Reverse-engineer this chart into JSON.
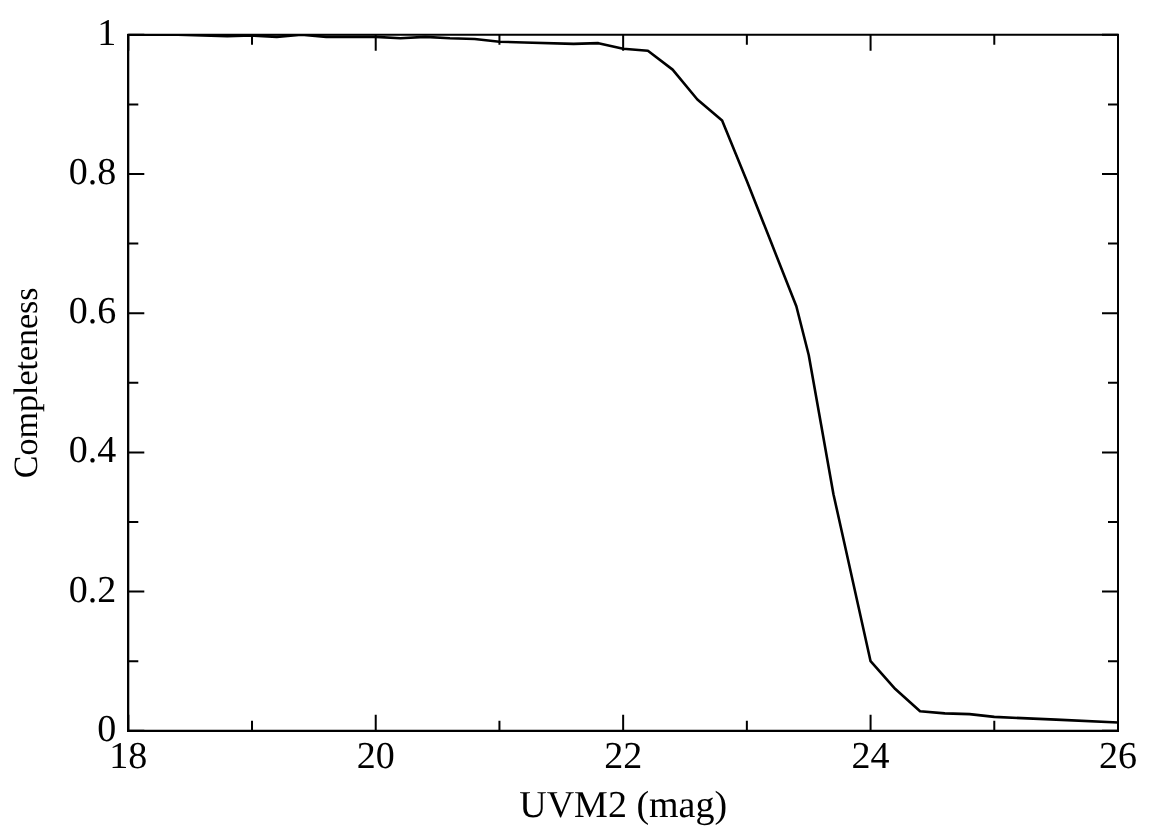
{
  "chart_data": {
    "type": "line",
    "xlabel": "UVM2 (mag)",
    "ylabel": "Completeness",
    "series": [
      {
        "color": "#000000",
        "x": [
          18,
          18.4,
          18.8,
          19.0,
          19.2,
          19.4,
          19.6,
          20.0,
          20.2,
          20.4,
          20.6,
          20.8,
          21.0,
          21.2,
          21.6,
          21.8,
          22.0,
          22.2,
          22.4,
          22.6,
          22.8,
          23.0,
          23.2,
          23.4,
          23.5,
          23.6,
          23.7,
          23.8,
          23.9,
          24.0,
          24.2,
          24.4,
          24.6,
          24.8,
          25.0,
          25.5,
          26.0
        ],
        "values": [
          1.0,
          1.0,
          0.998,
          0.999,
          0.997,
          1.0,
          0.997,
          0.997,
          0.995,
          0.997,
          0.995,
          0.994,
          0.99,
          0.989,
          0.987,
          0.988,
          0.98,
          0.977,
          0.95,
          0.907,
          0.877,
          0.79,
          0.7,
          0.61,
          0.54,
          0.44,
          0.34,
          0.26,
          0.18,
          0.1,
          0.06,
          0.028,
          0.025,
          0.024,
          0.02,
          0.016,
          0.012
        ]
      }
    ],
    "xlim": [
      18,
      26
    ],
    "xticks": [
      18,
      20,
      22,
      24,
      26
    ],
    "ylim": [
      0,
      1
    ],
    "yticks": [
      0,
      0.2,
      0.4,
      0.6,
      0.8,
      1
    ],
    "grid": false,
    "legend": false,
    "marker": "none",
    "line_style": "solid"
  }
}
